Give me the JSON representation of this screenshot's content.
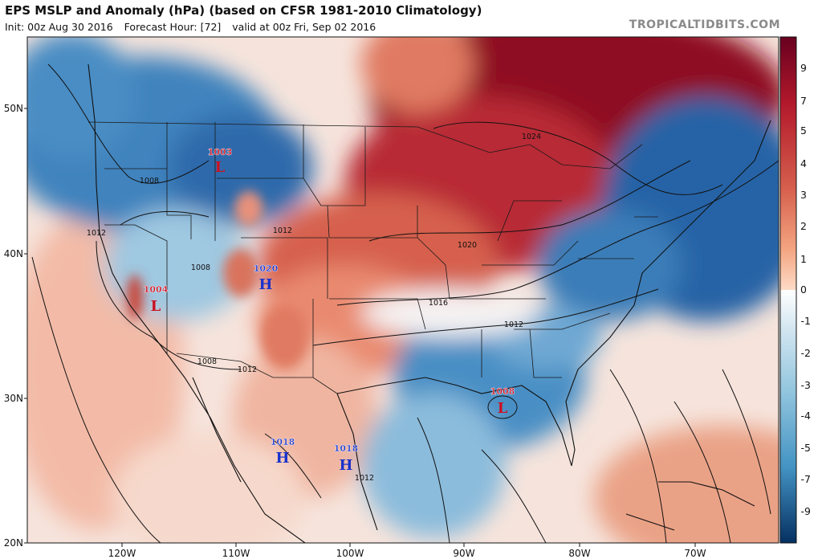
{
  "header": {
    "title": "EPS MSLP and Anomaly (hPa) (based on CFSR 1981-2010 Climatology)",
    "init": "Init: 00z Aug 30 2016",
    "forecast_hour": "Forecast Hour: [72]",
    "valid": "valid at 00z Fri, Sep 02 2016",
    "brand": "TROPICALTIDBITS.COM"
  },
  "lat_labels": [
    "50N",
    "40N",
    "30N",
    "20N"
  ],
  "lon_labels": [
    "120W",
    "110W",
    "100W",
    "90W",
    "80W",
    "70W"
  ],
  "colorbar": {
    "labels": [
      "9",
      "7",
      "5",
      "4",
      "3",
      "2",
      "1",
      "0",
      "-1",
      "-2",
      "-3",
      "-4",
      "-5",
      "-7",
      "-9"
    ]
  },
  "isobars": [
    "1024",
    "1020",
    "1016",
    "1012",
    "1012",
    "1012",
    "1012",
    "1012",
    "1008",
    "1008",
    "1008"
  ],
  "pressure_centers": [
    {
      "value": "1003",
      "symbol": "L"
    },
    {
      "value": "1004",
      "symbol": "L"
    },
    {
      "value": "1020",
      "symbol": "H"
    },
    {
      "value": "1008",
      "symbol": "L"
    },
    {
      "value": "1018",
      "symbol": "H"
    },
    {
      "value": "1018",
      "symbol": "H"
    }
  ],
  "colors": {
    "high_center": "#1a33cc",
    "low_center": "#cc1122"
  }
}
